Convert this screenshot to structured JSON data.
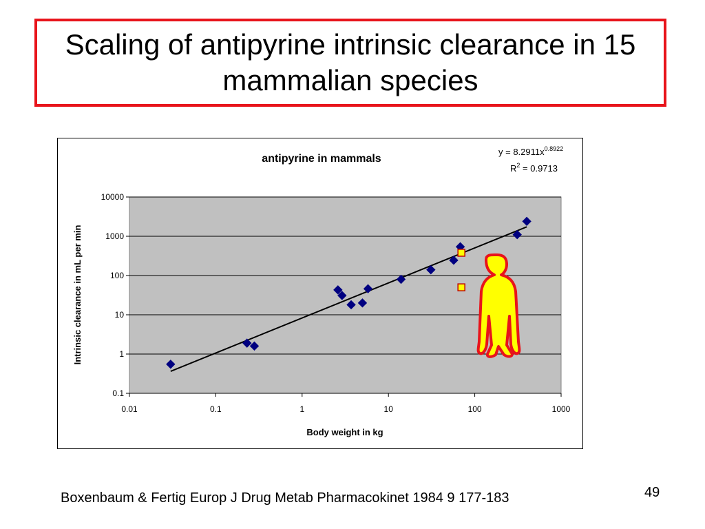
{
  "slide": {
    "title": "Scaling of antipyrine intrinsic clearance in 15 mammalian species",
    "citation": "Boxenbaum & Fertig Europ J Drug Metab Pharmacokinet 1984 9 177-183",
    "page_number": "49"
  },
  "chart_data": {
    "type": "scatter",
    "title": "antipyrine in mammals",
    "xlabel": "Body weight in kg",
    "ylabel": "Intrinsic clearance in mL per min",
    "x_scale": "log",
    "y_scale": "log",
    "xlim": [
      0.01,
      1000
    ],
    "ylim": [
      0.1,
      10000
    ],
    "x_ticks": [
      "0.01",
      "0.1",
      "1",
      "10",
      "100",
      "1000"
    ],
    "y_ticks": [
      "0.1",
      "1",
      "10",
      "100",
      "1000",
      "10000"
    ],
    "grid": "horizontal",
    "plot_background": "#c0c0c0",
    "series": [
      {
        "marker": "diamond",
        "color": "#000080",
        "points": [
          {
            "x": 0.03,
            "y": 0.55
          },
          {
            "x": 0.23,
            "y": 1.9
          },
          {
            "x": 0.28,
            "y": 1.6
          },
          {
            "x": 2.6,
            "y": 43
          },
          {
            "x": 2.9,
            "y": 31
          },
          {
            "x": 3.7,
            "y": 18
          },
          {
            "x": 5.0,
            "y": 20
          },
          {
            "x": 5.8,
            "y": 46
          },
          {
            "x": 14,
            "y": 80
          },
          {
            "x": 31,
            "y": 140
          },
          {
            "x": 57,
            "y": 245
          },
          {
            "x": 68,
            "y": 540
          },
          {
            "x": 310,
            "y": 1100
          },
          {
            "x": 400,
            "y": 2400
          }
        ]
      },
      {
        "marker": "square",
        "color": "#ffff00",
        "edge_color": "#c00000",
        "points": [
          {
            "x": 70,
            "y": 380
          },
          {
            "x": 70,
            "y": 50
          }
        ]
      }
    ],
    "trendline": {
      "type": "power",
      "coefficient": 8.2911,
      "exponent": 0.8922,
      "x_range": [
        0.03,
        400
      ]
    },
    "annotations": {
      "equation_prefix": "y = 8.2911x",
      "equation_exponent": "0.8922",
      "r2_prefix": "R",
      "r2_exponent": "2",
      "r2_suffix": " = 0.9713"
    },
    "figure_icon": "human-figure-icon",
    "figure_colors": {
      "fill": "#ffff00",
      "stroke": "#e8141b"
    }
  }
}
